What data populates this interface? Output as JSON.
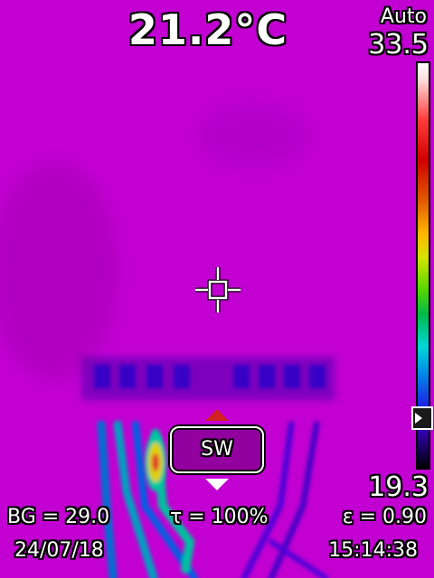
{
  "reading": {
    "center_temperature": "21.2°C"
  },
  "scale": {
    "mode": "Auto",
    "max": "33.5",
    "min": "19.3",
    "palette": "iron-rainbow"
  },
  "mode_button": {
    "label": "SW"
  },
  "params": {
    "background_temp": "BG = 29.0",
    "transmission": "τ = 100%",
    "emissivity": "ε = 0.90"
  },
  "footer": {
    "date": "24/07/18",
    "time": "15:14:38"
  },
  "colors": {
    "background": "#c000d0",
    "hot_spot": "#e0c000",
    "scale_marker": "#1a1a1a"
  },
  "icons": {
    "crosshair": "crosshair-icon",
    "up": "arrow-up-icon",
    "down": "arrow-down-icon",
    "marker": "scale-marker-icon"
  }
}
